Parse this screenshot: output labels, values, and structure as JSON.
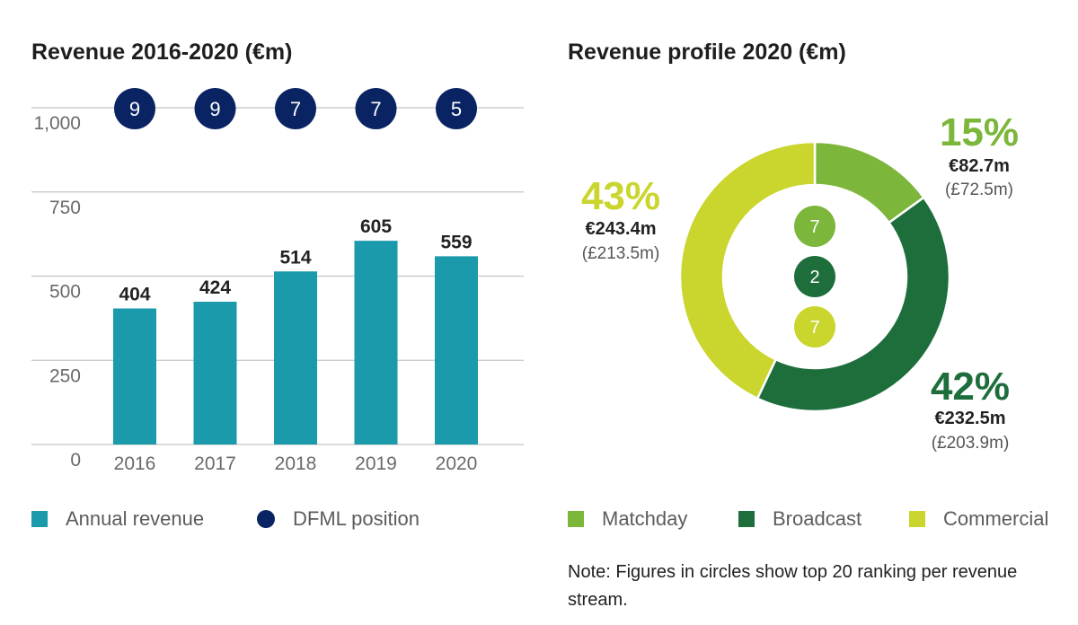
{
  "bar_chart": {
    "title": "Revenue 2016-2020 (€m)",
    "legend": [
      {
        "label": "Annual revenue",
        "color": "#1a9aaa"
      },
      {
        "label": "DFML position",
        "color": "#0a2463"
      }
    ]
  },
  "pie_chart": {
    "title": "Revenue profile 2020 (€m)",
    "legend": [
      {
        "label": "Matchday",
        "color": "#7cb63a"
      },
      {
        "label": "Broadcast",
        "color": "#1e6e3c"
      },
      {
        "label": "Commercial",
        "color": "#cad52e"
      }
    ],
    "note": "Note: Figures in circles show top 20 ranking per revenue stream."
  },
  "chart_data": [
    {
      "type": "bar",
      "title": "Revenue 2016-2020 (€m)",
      "categories": [
        "2016",
        "2017",
        "2018",
        "2019",
        "2020"
      ],
      "series": [
        {
          "name": "Annual revenue",
          "values": [
            404,
            424,
            514,
            605,
            559
          ],
          "color": "#1a9aaa"
        }
      ],
      "value_labels": [
        "404",
        "424",
        "514",
        "605",
        "559"
      ],
      "dfml_position": {
        "name": "DFML position",
        "values": [
          9,
          9,
          7,
          7,
          5
        ],
        "color": "#0a2463"
      },
      "yticks": [
        "0",
        "250",
        "500",
        "750",
        "1,000"
      ],
      "ylim": [
        0,
        1000
      ],
      "xlabel": "",
      "ylabel": ""
    },
    {
      "type": "pie",
      "title": "Revenue profile 2020 (€m)",
      "slices": [
        {
          "name": "Matchday",
          "percent": 15,
          "pct_label": "15%",
          "eur": "€82.7m",
          "gbp": "(£72.5m)",
          "rank": "7",
          "color": "#7cb63a"
        },
        {
          "name": "Broadcast",
          "percent": 42,
          "pct_label": "42%",
          "eur": "€232.5m",
          "gbp": "(£203.9m)",
          "rank": "2",
          "color": "#1e6e3c"
        },
        {
          "name": "Commercial",
          "percent": 43,
          "pct_label": "43%",
          "eur": "€243.4m",
          "gbp": "(£213.5m)",
          "rank": "7",
          "color": "#cad52e"
        }
      ]
    }
  ]
}
